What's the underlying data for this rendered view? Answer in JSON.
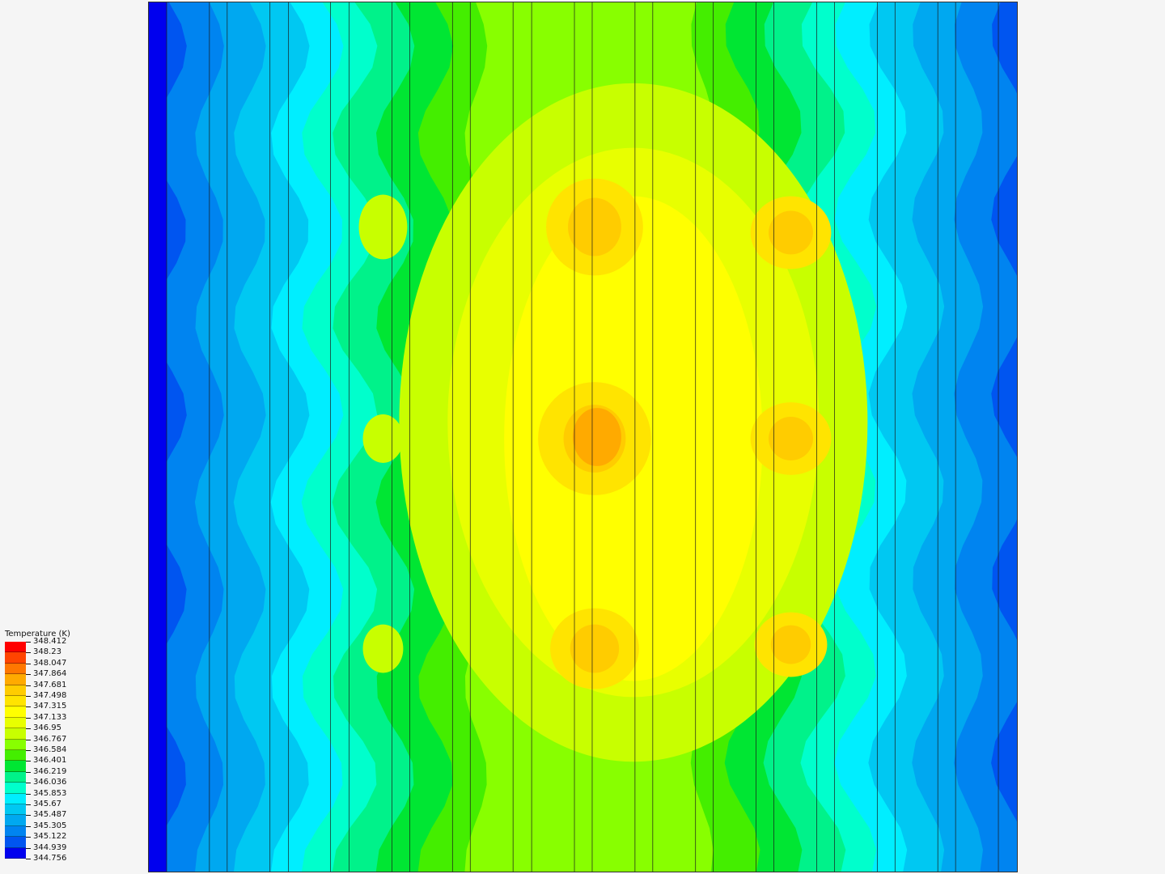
{
  "legend": {
    "title": "Temperature (K)",
    "labels": [
      "348.412",
      "348.23",
      "348.047",
      "347.864",
      "347.681",
      "347.498",
      "347.315",
      "347.133",
      "346.95",
      "346.767",
      "346.584",
      "346.401",
      "346.219",
      "346.036",
      "345.853",
      "345.67",
      "345.487",
      "345.305",
      "345.122",
      "344.939",
      "344.756"
    ],
    "colors": [
      "#ff0000",
      "#ff4400",
      "#ff7700",
      "#ffaa00",
      "#ffcc00",
      "#ffe400",
      "#ffff00",
      "#e8ff00",
      "#c8ff00",
      "#88ff00",
      "#44ee00",
      "#00e633",
      "#00f28a",
      "#00ffcc",
      "#00eeff",
      "#00c8f2",
      "#00a8f0",
      "#0084f0",
      "#0055f0",
      "#0000ee"
    ]
  },
  "field": {
    "colormap": [
      "#0000ee",
      "#0055f0",
      "#0084f0",
      "#00a8f0",
      "#00c8f2",
      "#00eeff",
      "#00ffcc",
      "#00f28a",
      "#00e633",
      "#44ee00",
      "#88ff00",
      "#c8ff00",
      "#e8ff00",
      "#ffff00",
      "#ffe400",
      "#ffcc00",
      "#ffaa00",
      "#ff7700",
      "#ff4400",
      "#ff0000"
    ]
  }
}
